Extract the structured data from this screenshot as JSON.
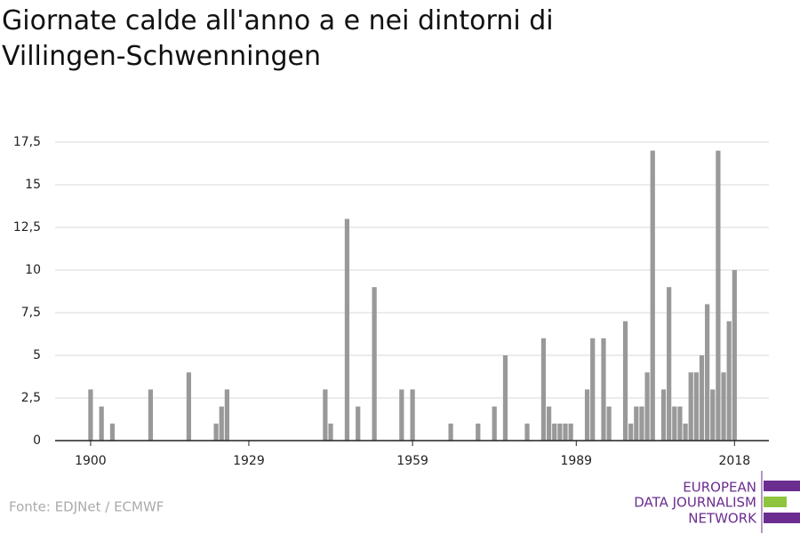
{
  "chart_data": {
    "type": "bar",
    "title": "Giornate calde all'anno a e nei dintorni di Villingen-Schwenningen",
    "source": "Fonte: EDJNet / ECMWF",
    "logo": [
      "EUROPEAN",
      "DATA JOURNALISM",
      "NETWORK"
    ],
    "color": "#999999",
    "x": [
      1900,
      1902,
      1904,
      1911,
      1918,
      1923,
      1924,
      1925,
      1943,
      1944,
      1947,
      1949,
      1952,
      1957,
      1959,
      1966,
      1971,
      1974,
      1976,
      1980,
      1983,
      1984,
      1985,
      1986,
      1987,
      1988,
      1991,
      1992,
      1994,
      1995,
      1998,
      1999,
      2000,
      2001,
      2002,
      2003,
      2005,
      2006,
      2007,
      2008,
      2009,
      2010,
      2011,
      2012,
      2013,
      2014,
      2015,
      2016,
      2017,
      2018
    ],
    "values": [
      3,
      2,
      1,
      3,
      4,
      1,
      2,
      3,
      3,
      1,
      13,
      2,
      9,
      3,
      3,
      1,
      1,
      2,
      5,
      1,
      6,
      2,
      1,
      1,
      1,
      1,
      3,
      6,
      6,
      2,
      7,
      1,
      2,
      2,
      4,
      17,
      3,
      9,
      2,
      2,
      1,
      4,
      4,
      5,
      8,
      3,
      17,
      4,
      7,
      10
    ],
    "xlim": [
      1893.5,
      2024.3
    ],
    "xticks": [
      1900,
      1929,
      1959,
      1989,
      2018
    ],
    "ylim": [
      0,
      17.5
    ],
    "yticks": [
      0,
      {
        "value": 2.5,
        "label": "2,5"
      },
      5,
      {
        "value": 7.5,
        "label": "7,5"
      },
      10,
      {
        "value": 12.5,
        "label": "12,5"
      },
      15,
      {
        "value": 17.5,
        "label": "17,5"
      }
    ],
    "grid": true
  }
}
